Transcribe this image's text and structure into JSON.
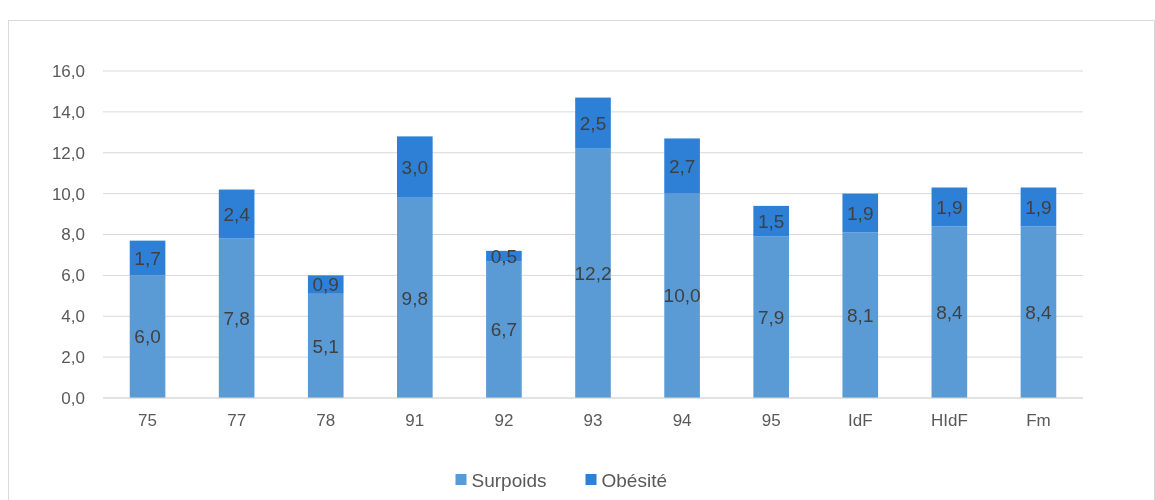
{
  "chart_data": {
    "type": "bar",
    "stacked": true,
    "categories": [
      "75",
      "77",
      "78",
      "91",
      "92",
      "93",
      "94",
      "95",
      "IdF",
      "HIdF",
      "Fm"
    ],
    "series": [
      {
        "name": "Surpoids",
        "color": "#5b9bd5",
        "values": [
          6.0,
          7.8,
          5.1,
          9.8,
          6.7,
          12.2,
          10.0,
          7.9,
          8.1,
          8.4,
          8.4
        ],
        "value_labels": [
          "6,0",
          "7,8",
          "5,1",
          "9,8",
          "6,7",
          "12,2",
          "10,0",
          "7,9",
          "8,1",
          "8,4",
          "8,4"
        ]
      },
      {
        "name": "Obésité",
        "color": "#2e7fd6",
        "values": [
          1.7,
          2.4,
          0.9,
          3.0,
          0.5,
          2.5,
          2.7,
          1.5,
          1.9,
          1.9,
          1.9
        ],
        "value_labels": [
          "1,7",
          "2,4",
          "0,9",
          "3,0",
          "0,5",
          "2,5",
          "2,7",
          "1,5",
          "1,9",
          "1,9",
          "1,9"
        ]
      }
    ],
    "ylim": [
      0,
      16
    ],
    "yticks": [
      {
        "value": 0,
        "label": "0,0"
      },
      {
        "value": 2,
        "label": "2,0"
      },
      {
        "value": 4,
        "label": "4,0"
      },
      {
        "value": 6,
        "label": "6,0"
      },
      {
        "value": 8,
        "label": "8,0"
      },
      {
        "value": 10,
        "label": "10,0"
      },
      {
        "value": 12,
        "label": "12,0"
      },
      {
        "value": 14,
        "label": "14,0"
      },
      {
        "value": 16,
        "label": "16,0"
      }
    ],
    "grid": "y",
    "legend": "bottom"
  }
}
